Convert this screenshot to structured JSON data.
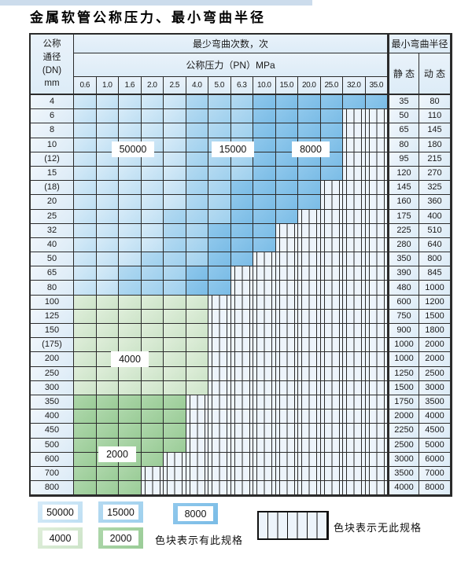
{
  "title": "金属软管公称压力、最小弯曲半径",
  "table": {
    "corner": {
      "line1": "公称",
      "line2": "通径",
      "line3": "(DN)",
      "line4": "mm"
    },
    "bend_cycles_header": "最少弯曲次数，次",
    "pressure_header": "公称压力（PN）MPa",
    "radius_header": "最小弯曲半径",
    "static_header": "静 态",
    "dynamic_header": "动 态",
    "pressures": [
      "0.6",
      "1.0",
      "1.6",
      "2.0",
      "2.5",
      "4.0",
      "5.0",
      "6.3",
      "10.0",
      "15.0",
      "20.0",
      "25.0",
      "32.0",
      "35.0"
    ],
    "region_legend": {
      "a": "50000",
      "b": "15000",
      "c": "8000",
      "d": "4000",
      "e": "2000",
      "x": "no-spec-hatch"
    },
    "region_colors": {
      "a": "#c9e4f5",
      "b": "#a8d4ef",
      "c": "#85c2e9",
      "d": "#d6e9d1",
      "e": "#a4d1a1",
      "border": "#2b2b2b",
      "hatch_bg": "#edf4fb"
    },
    "rows": [
      {
        "dn": "4",
        "cells": "aaaaabbbcccccc",
        "static": "35",
        "dynamic": "80"
      },
      {
        "dn": "6",
        "cells": "aaaaabbbccccxx",
        "static": "50",
        "dynamic": "110"
      },
      {
        "dn": "8",
        "cells": "aaaaabbbccccxx",
        "static": "65",
        "dynamic": "145"
      },
      {
        "dn": "10",
        "cells": "aaaaabbbccccxx",
        "static": "80",
        "dynamic": "180"
      },
      {
        "dn": "(12)",
        "cells": "aaaaabbbccccxx",
        "static": "95",
        "dynamic": "215"
      },
      {
        "dn": "15",
        "cells": "aaaaabbbccccxx",
        "static": "120",
        "dynamic": "270"
      },
      {
        "dn": "(18)",
        "cells": "aaaaabbccccxxx",
        "static": "145",
        "dynamic": "325"
      },
      {
        "dn": "20",
        "cells": "aaaaabbccccxxx",
        "static": "160",
        "dynamic": "360"
      },
      {
        "dn": "25",
        "cells": "aaaabbbcccxxxx",
        "static": "175",
        "dynamic": "400"
      },
      {
        "dn": "32",
        "cells": "aaaabbcccxxxxx",
        "static": "225",
        "dynamic": "510"
      },
      {
        "dn": "40",
        "cells": "aaaabbcccxxxxx",
        "static": "280",
        "dynamic": "640"
      },
      {
        "dn": "50",
        "cells": "aaabbbccxxxxxx",
        "static": "350",
        "dynamic": "800"
      },
      {
        "dn": "65",
        "cells": "aabbbccxxxxxxx",
        "static": "390",
        "dynamic": "845"
      },
      {
        "dn": "80",
        "cells": "aabbbccxxxxxxx",
        "static": "480",
        "dynamic": "1000"
      },
      {
        "dn": "100",
        "cells": "ddddddxxxxxxxx",
        "static": "600",
        "dynamic": "1200"
      },
      {
        "dn": "125",
        "cells": "ddddddxxxxxxxx",
        "static": "750",
        "dynamic": "1500"
      },
      {
        "dn": "150",
        "cells": "ddddddxxxxxxxx",
        "static": "900",
        "dynamic": "1800"
      },
      {
        "dn": "(175)",
        "cells": "ddddddxxxxxxxx",
        "static": "1000",
        "dynamic": "2000"
      },
      {
        "dn": "200",
        "cells": "ddddddxxxxxxxx",
        "static": "1000",
        "dynamic": "2000"
      },
      {
        "dn": "250",
        "cells": "ddddddxxxxxxxx",
        "static": "1250",
        "dynamic": "2500"
      },
      {
        "dn": "300",
        "cells": "ddddddxxxxxxxx",
        "static": "1500",
        "dynamic": "3000"
      },
      {
        "dn": "350",
        "cells": "eeeeexxxxxxxxx",
        "static": "1750",
        "dynamic": "3500"
      },
      {
        "dn": "400",
        "cells": "eeeeexxxxxxxxx",
        "static": "2000",
        "dynamic": "4000"
      },
      {
        "dn": "450",
        "cells": "eeeeexxxxxxxxx",
        "static": "2250",
        "dynamic": "4500"
      },
      {
        "dn": "500",
        "cells": "eeeeexxxxxxxxx",
        "static": "2500",
        "dynamic": "5000"
      },
      {
        "dn": "600",
        "cells": "eeeexxxxxxxxxx",
        "static": "3000",
        "dynamic": "6000"
      },
      {
        "dn": "700",
        "cells": "eeexxxxxxxxxxx",
        "static": "3500",
        "dynamic": "7000"
      },
      {
        "dn": "800",
        "cells": "eeexxxxxxxxxxx",
        "static": "4000",
        "dynamic": "8000"
      }
    ]
  },
  "overlays": [
    {
      "label": "50000"
    },
    {
      "label": "15000"
    },
    {
      "label": "8000"
    },
    {
      "label": "4000"
    },
    {
      "label": "2000"
    }
  ],
  "legend": {
    "items": [
      {
        "label": "50000"
      },
      {
        "label": "15000"
      },
      {
        "label": "8000"
      },
      {
        "label": "4000"
      },
      {
        "label": "2000"
      }
    ],
    "has_spec_note": "色块表示有此规格",
    "no_spec_note": "色块表示无此规格"
  }
}
